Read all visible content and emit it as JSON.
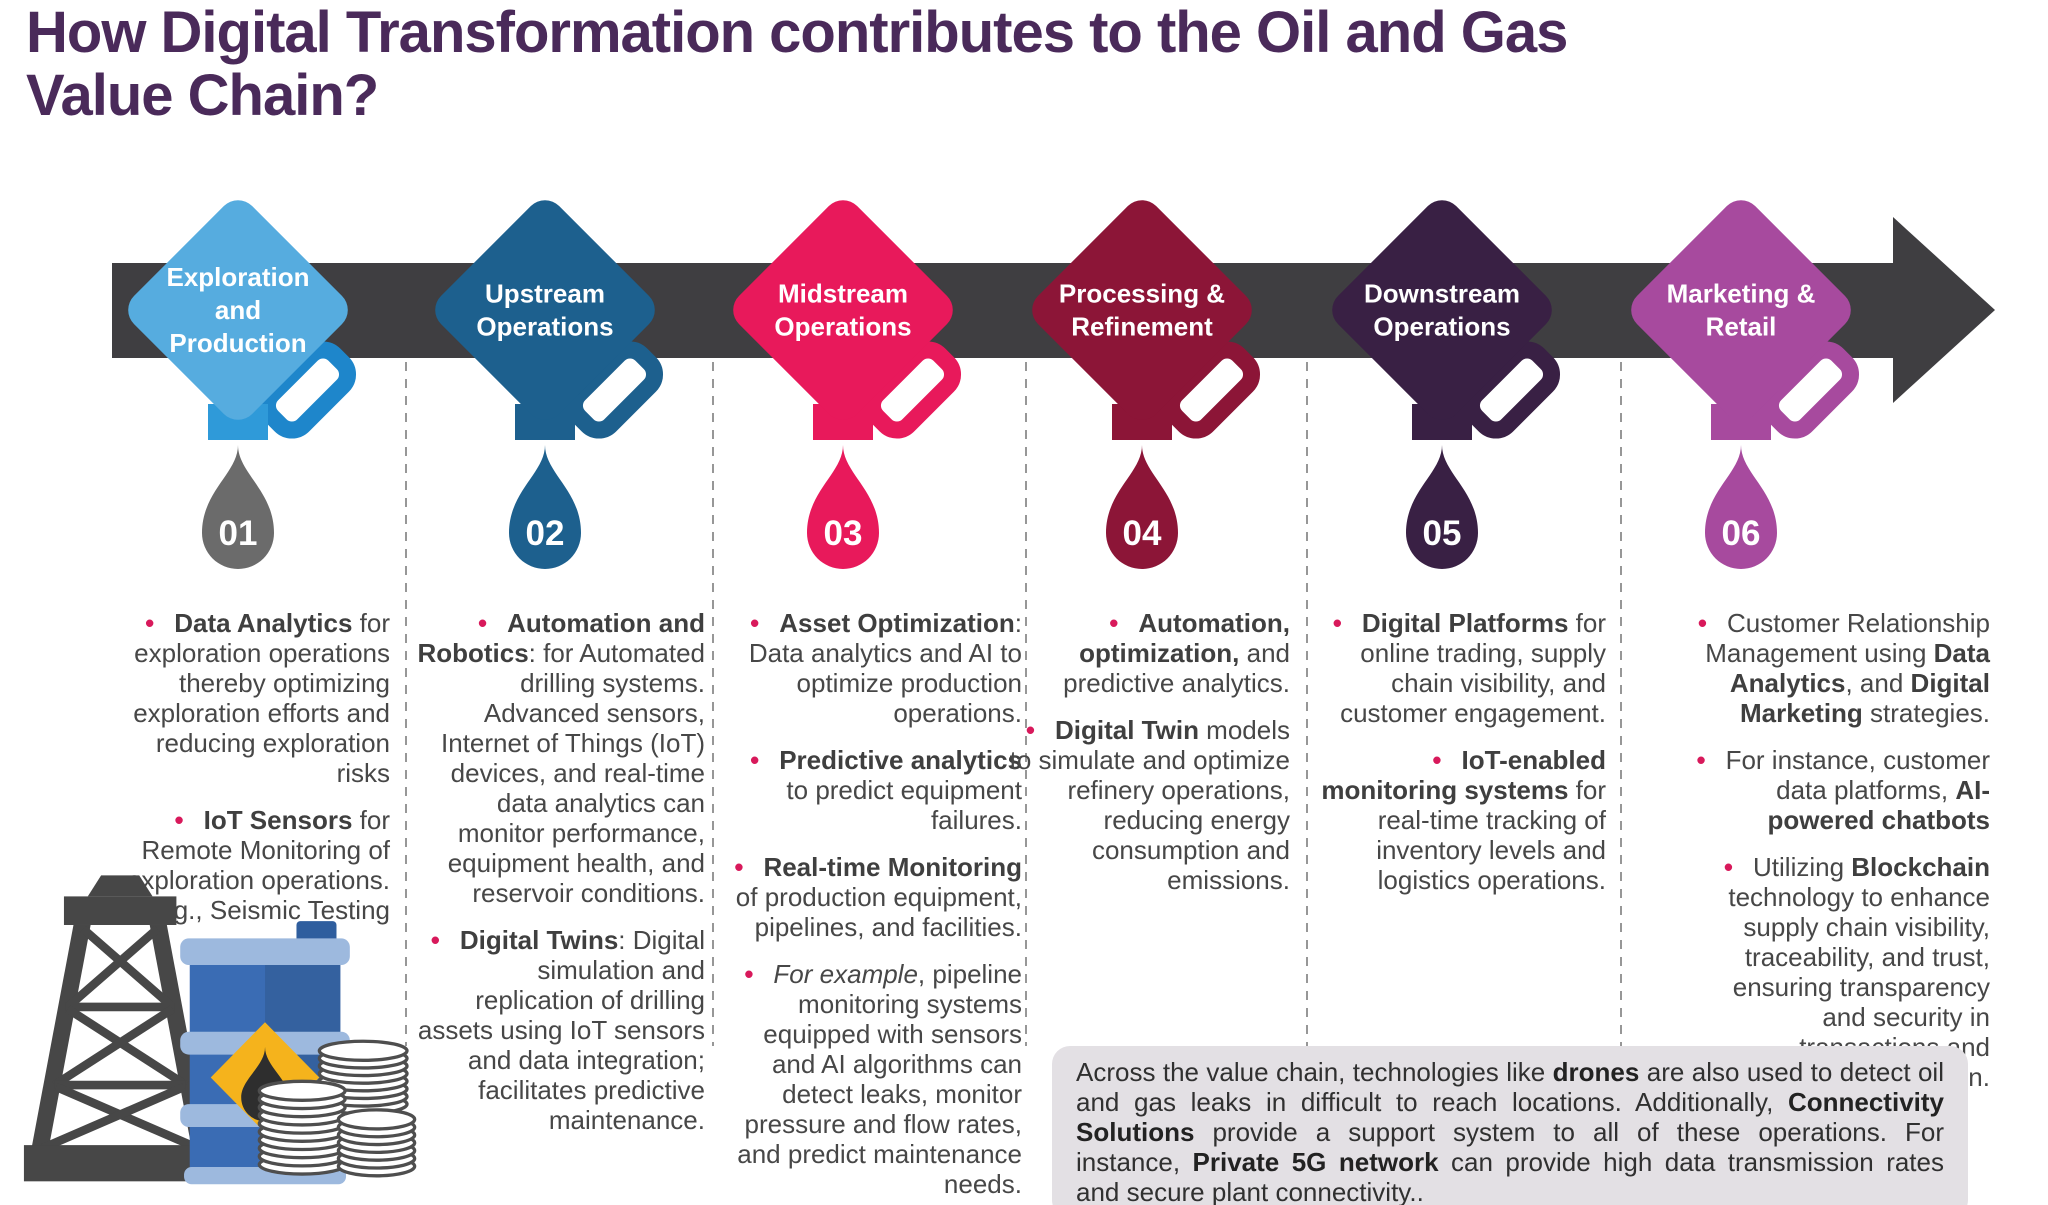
{
  "title": {
    "line1": "How Digital Transformation contributes to the Oil and Gas",
    "line2": "Value Chain?"
  },
  "colors": {
    "title_text": "#4A2A5A",
    "arrow_band": "#3F3E41",
    "body_text": "#474747",
    "bullet_dot": "#D8195B",
    "separator": "#979797",
    "footer_bg": "#E3E0E4"
  },
  "stages": [
    {
      "number": "01",
      "label": "Exploration and Production",
      "label_lines": [
        "Exploration",
        "and",
        "Production"
      ],
      "body_color": "#56ACDF",
      "handle_color": "#1E86CB",
      "neck_color": "#2F9AD9",
      "drop_color": "#6B6B6B",
      "bullets": [
        {
          "segments": [
            {
              "t": "Data Analytics",
              "b": true
            },
            {
              "t": " for exploration operations thereby optimizing exploration efforts and reducing exploration risks"
            }
          ]
        },
        {
          "segments": [
            {
              "t": "IoT Sensors",
              "b": true
            },
            {
              "t": " for Remote Monitoring of exploration operations. E.g., Seismic Testing"
            }
          ]
        }
      ]
    },
    {
      "number": "02",
      "label": "Upstream Operations",
      "label_lines": [
        "Upstream",
        "Operations"
      ],
      "body_color": "#1D608E",
      "handle_color": "#1D608E",
      "neck_color": "#1D608E",
      "drop_color": "#1D608E",
      "bullets": [
        {
          "segments": [
            {
              "t": "Automation and Robotics",
              "b": true
            },
            {
              "t": ": for Automated drilling systems. Advanced sensors, Internet of Things (IoT) devices, and real-time data analytics can monitor performance, equipment health, and reservoir conditions."
            }
          ]
        },
        {
          "segments": [
            {
              "t": "Digital Twins",
              "b": true
            },
            {
              "t": ": Digital simulation and replication of drilling assets using IoT sensors and data integration; facilitates predictive maintenance."
            }
          ]
        }
      ]
    },
    {
      "number": "03",
      "label": "Midstream Operations",
      "label_lines": [
        "Midstream",
        "Operations"
      ],
      "body_color": "#E8195B",
      "handle_color": "#E8195B",
      "neck_color": "#E8195B",
      "drop_color": "#E8195B",
      "bullets": [
        {
          "segments": [
            {
              "t": "Asset Optimization",
              "b": true
            },
            {
              "t": ": Data analytics and AI to optimize production operations."
            }
          ]
        },
        {
          "segments": [
            {
              "t": "Predictive analytics",
              "b": true
            },
            {
              "t": " to predict equipment failures."
            }
          ]
        },
        {
          "segments": [
            {
              "t": "Real-time Monitoring",
              "b": true
            },
            {
              "t": " of production equipment, pipelines, and facilities."
            }
          ]
        },
        {
          "segments": [
            {
              "t": "For example",
              "i": true
            },
            {
              "t": ", pipeline monitoring systems equipped with sensors and AI algorithms can detect leaks, monitor pressure and flow rates, and predict maintenance needs."
            }
          ]
        }
      ]
    },
    {
      "number": "04",
      "label": "Processing & Refinement",
      "label_lines": [
        "Processing &",
        "Refinement"
      ],
      "body_color": "#8C1537",
      "handle_color": "#8C1537",
      "neck_color": "#8C1537",
      "drop_color": "#8C1537",
      "bullets": [
        {
          "segments": [
            {
              "t": "Automation, optimization,",
              "b": true
            },
            {
              "t": " and predictive analytics."
            }
          ]
        },
        {
          "segments": [
            {
              "t": "Digital Twin",
              "b": true
            },
            {
              "t": " models to simulate and optimize refinery operations, reducing energy consumption and emissions."
            }
          ]
        }
      ]
    },
    {
      "number": "05",
      "label": "Downstream Operations",
      "label_lines": [
        "Downstream",
        "Operations"
      ],
      "body_color": "#392044",
      "handle_color": "#392044",
      "neck_color": "#392044",
      "drop_color": "#392044",
      "bullets": [
        {
          "segments": [
            {
              "t": "Digital Platforms",
              "b": true
            },
            {
              "t": " for online trading, supply chain visibility, and customer engagement."
            }
          ]
        },
        {
          "segments": [
            {
              "t": "IoT-enabled monitoring systems",
              "b": true
            },
            {
              "t": " for real-time tracking of inventory levels and logistics operations."
            }
          ]
        }
      ]
    },
    {
      "number": "06",
      "label": "Marketing & Retail",
      "label_lines": [
        "Marketing &",
        "Retail"
      ],
      "body_color": "#A74A9E",
      "handle_color": "#A74A9E",
      "neck_color": "#A74A9E",
      "drop_color": "#A74A9E",
      "bullets": [
        {
          "segments": [
            {
              "t": "Customer Relationship Management using "
            },
            {
              "t": "Data Analytics",
              "b": true
            },
            {
              "t": ", and "
            },
            {
              "t": "Digital Marketing",
              "b": true
            },
            {
              "t": " strategies."
            }
          ]
        },
        {
          "segments": [
            {
              "t": "For instance, customer data platforms, "
            },
            {
              "t": "AI-powered chatbots",
              "b": true
            }
          ]
        },
        {
          "segments": [
            {
              "t": "Utilizing "
            },
            {
              "t": "Blockchain",
              "b": true
            },
            {
              "t": " technology to enhance supply chain visibility, traceability, and trust, ensuring transparency and security in transactions and documentation."
            }
          ]
        }
      ]
    }
  ],
  "footer": {
    "segments": [
      {
        "t": "Across the value chain, technologies like "
      },
      {
        "t": "drones",
        "b": true
      },
      {
        "t": " are also used to detect oil and gas leaks in difficult to reach locations. Additionally, "
      },
      {
        "t": "Connectivity Solutions",
        "b": true
      },
      {
        "t": " provide a support system to all of these operations. For instance, "
      },
      {
        "t": "Private 5G network",
        "b": true
      },
      {
        "t": " can provide high data transmission rates and secure plant connectivity.."
      }
    ]
  },
  "illustration": {
    "name": "oil-derrick-barrel-and-coins",
    "derrick_color": "#474747",
    "barrel_color": "#3A6CB4",
    "barrel_band_color": "#9DB9DE",
    "hazard_diamond_color": "#F5B31C",
    "oil_drop_color": "#2E2E2E"
  }
}
